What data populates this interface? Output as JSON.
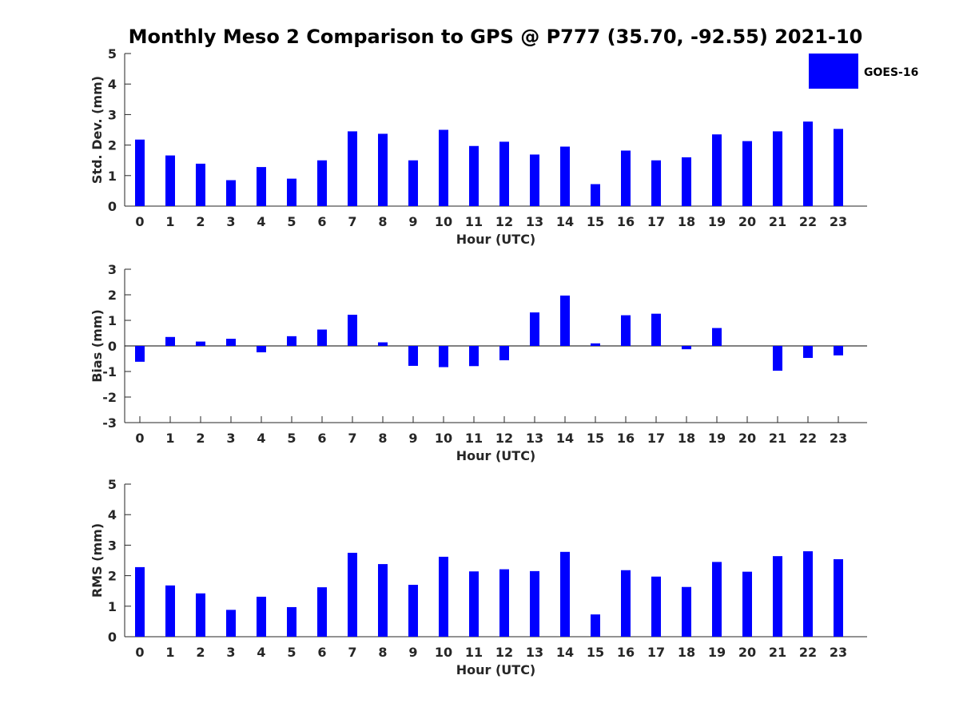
{
  "figure": {
    "title": "Monthly Meso 2 Comparison to GPS @ P777 (35.70, -92.55) 2021-10",
    "legend": {
      "label": "GOES-16",
      "color": "#0000ff"
    }
  },
  "chart_data": [
    {
      "type": "bar",
      "title": "Monthly Meso 2 Comparison to GPS @ P777 (35.70, -92.55) 2021-10",
      "xlabel": "Hour (UTC)",
      "ylabel": "Std. Dev. (mm)",
      "ylim": [
        0,
        5
      ],
      "yticks": [
        0,
        1,
        2,
        3,
        4,
        5
      ],
      "categories": [
        0,
        1,
        2,
        3,
        4,
        5,
        6,
        7,
        8,
        9,
        10,
        11,
        12,
        13,
        14,
        15,
        16,
        17,
        18,
        19,
        20,
        21,
        22,
        23
      ],
      "series": [
        {
          "name": "GOES-16",
          "color": "#0000ff",
          "values": [
            2.18,
            1.66,
            1.39,
            0.85,
            1.28,
            0.9,
            1.5,
            2.45,
            2.37,
            1.5,
            2.5,
            1.97,
            2.11,
            1.69,
            1.95,
            0.72,
            1.82,
            1.5,
            1.6,
            2.35,
            2.13,
            2.45,
            2.77,
            2.53
          ]
        }
      ],
      "legend": "top-right",
      "grid": false
    },
    {
      "type": "bar",
      "xlabel": "Hour (UTC)",
      "ylabel": "Bias (mm)",
      "ylim": [
        -3,
        3
      ],
      "yticks": [
        -3,
        -2,
        -1,
        0,
        1,
        2,
        3
      ],
      "categories": [
        0,
        1,
        2,
        3,
        4,
        5,
        6,
        7,
        8,
        9,
        10,
        11,
        12,
        13,
        14,
        15,
        16,
        17,
        18,
        19,
        20,
        21,
        22,
        23
      ],
      "series": [
        {
          "name": "GOES-16",
          "color": "#0000ff",
          "values": [
            -0.62,
            0.35,
            0.17,
            0.28,
            -0.25,
            0.38,
            0.64,
            1.22,
            0.14,
            -0.78,
            -0.83,
            -0.79,
            -0.56,
            1.31,
            1.97,
            0.1,
            1.2,
            1.26,
            -0.13,
            0.7,
            0.0,
            -0.97,
            -0.47,
            -0.37
          ]
        }
      ],
      "grid": false
    },
    {
      "type": "bar",
      "xlabel": "Hour (UTC)",
      "ylabel": "RMS (mm)",
      "ylim": [
        0,
        5
      ],
      "yticks": [
        0,
        1,
        2,
        3,
        4,
        5
      ],
      "categories": [
        0,
        1,
        2,
        3,
        4,
        5,
        6,
        7,
        8,
        9,
        10,
        11,
        12,
        13,
        14,
        15,
        16,
        17,
        18,
        19,
        20,
        21,
        22,
        23
      ],
      "series": [
        {
          "name": "GOES-16",
          "color": "#0000ff",
          "values": [
            2.28,
            1.68,
            1.42,
            0.88,
            1.31,
            0.97,
            1.62,
            2.75,
            2.38,
            1.7,
            2.62,
            2.14,
            2.21,
            2.15,
            2.78,
            0.73,
            2.18,
            1.97,
            1.63,
            2.45,
            2.13,
            2.64,
            2.8,
            2.54
          ]
        }
      ],
      "grid": false
    }
  ]
}
